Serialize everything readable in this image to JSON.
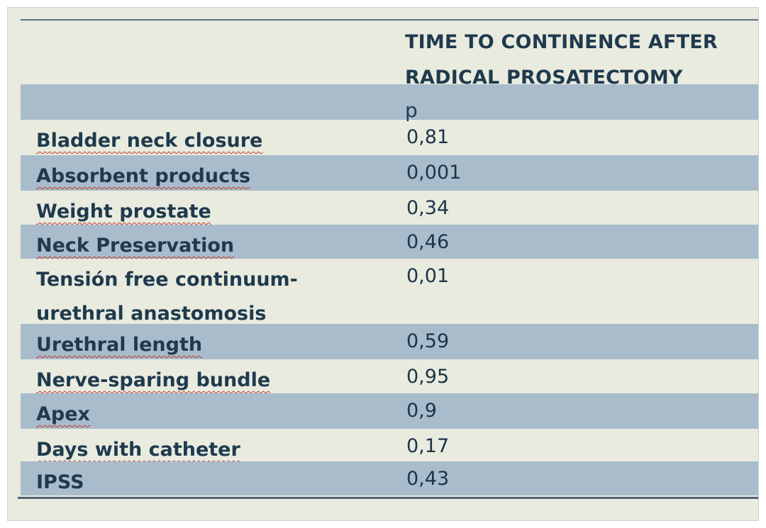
{
  "table": {
    "header_line1": "TIME TO CONTINENCE AFTER",
    "header_line2": "RADICAL PROSATECTOMY",
    "p_label": "p",
    "rows": [
      {
        "label": "Bladder neck closure",
        "value": "0,81"
      },
      {
        "label": "Absorbent products",
        "value": "0,001"
      },
      {
        "label": "Weight prostate",
        "value": "0,34"
      },
      {
        "label": "Neck Preservation",
        "value": "0,46"
      },
      {
        "label_line1": "Tensión free continuum-",
        "label_line2": "urethral anastomosis",
        "value": "0,01"
      },
      {
        "label": "Urethral length",
        "value": "0,59"
      },
      {
        "label": "Nerve-sparing bundle",
        "value": "0,95"
      },
      {
        "label": "Apex",
        "value": "0,9"
      },
      {
        "label": "Days with catheter",
        "value": "0,17"
      },
      {
        "label": "IPSS",
        "value": "0,43"
      }
    ]
  },
  "colors": {
    "background": "#e9ebdf",
    "band": "#a9bccb",
    "text": "#1f3a4e",
    "rule": "#4f6478",
    "spellcheck_underline": "#c0392b"
  }
}
